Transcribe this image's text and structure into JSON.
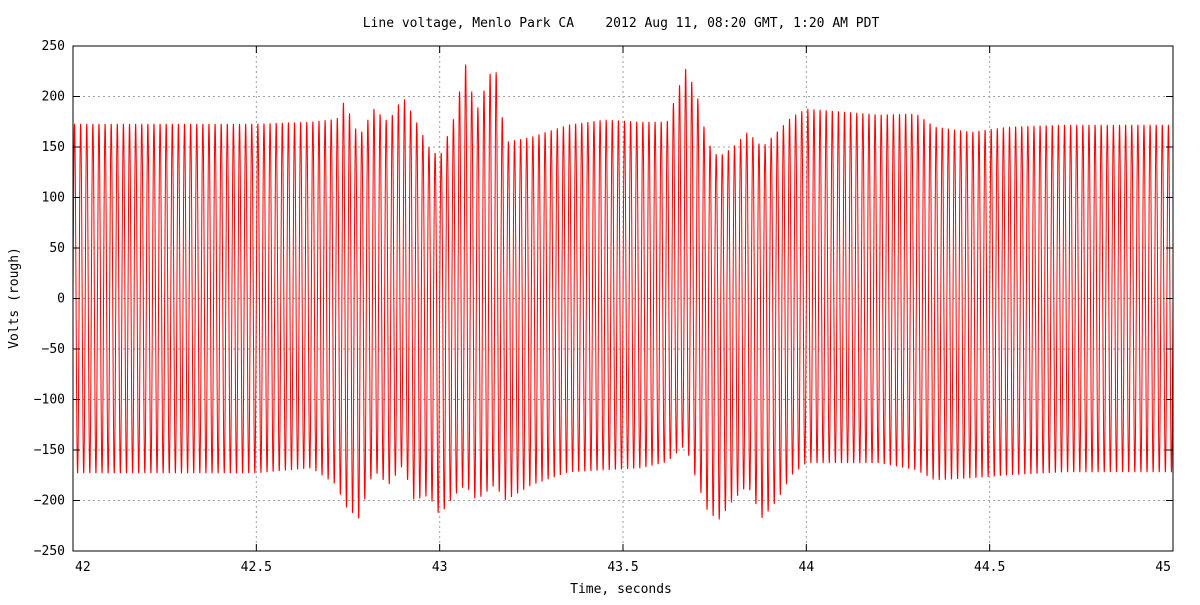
{
  "chart_data": {
    "type": "line",
    "title": "Line voltage, Menlo Park CA    2012 Aug 11, 08:20 GMT, 1:20 AM PDT",
    "xlabel": "Time, seconds",
    "ylabel": "Volts (rough)",
    "xlim": [
      42,
      45
    ],
    "ylim": [
      -250,
      250
    ],
    "x_ticks": [
      42,
      42.5,
      43,
      43.5,
      44,
      44.5,
      45
    ],
    "x_tick_labels": [
      "42",
      "42.5",
      "43",
      "43.5",
      "44",
      "44.5",
      "45"
    ],
    "y_ticks": [
      250,
      200,
      150,
      100,
      50,
      0,
      -50,
      -100,
      -150,
      -200,
      -250
    ],
    "y_tick_labels": [
      "250",
      "200",
      "150",
      "100",
      "50",
      "0",
      "−50",
      "−100",
      "−150",
      "−200",
      "−250"
    ],
    "grid": true,
    "legend": "none",
    "series": [
      {
        "color": "#ff0000",
        "waveform": "sine",
        "frequency_hz": 60,
        "envelope": [
          {
            "t": 42.0,
            "pos": 173,
            "neg": -173
          },
          {
            "t": 42.5,
            "pos": 173,
            "neg": -173
          },
          {
            "t": 42.65,
            "pos": 175,
            "neg": -168
          },
          {
            "t": 42.72,
            "pos": 178,
            "neg": -185
          },
          {
            "t": 42.74,
            "pos": 196,
            "neg": -205
          },
          {
            "t": 42.78,
            "pos": 160,
            "neg": -218
          },
          {
            "t": 42.82,
            "pos": 188,
            "neg": -170
          },
          {
            "t": 42.86,
            "pos": 175,
            "neg": -185
          },
          {
            "t": 42.9,
            "pos": 200,
            "neg": -165
          },
          {
            "t": 42.93,
            "pos": 180,
            "neg": -200
          },
          {
            "t": 42.97,
            "pos": 150,
            "neg": -195
          },
          {
            "t": 43.0,
            "pos": 140,
            "neg": -215
          },
          {
            "t": 43.04,
            "pos": 180,
            "neg": -195
          },
          {
            "t": 43.07,
            "pos": 233,
            "neg": -185
          },
          {
            "t": 43.1,
            "pos": 185,
            "neg": -200
          },
          {
            "t": 43.15,
            "pos": 235,
            "neg": -185
          },
          {
            "t": 43.18,
            "pos": 155,
            "neg": -200
          },
          {
            "t": 43.25,
            "pos": 160,
            "neg": -185
          },
          {
            "t": 43.35,
            "pos": 172,
            "neg": -172
          },
          {
            "t": 43.45,
            "pos": 177,
            "neg": -170
          },
          {
            "t": 43.55,
            "pos": 175,
            "neg": -168
          },
          {
            "t": 43.62,
            "pos": 175,
            "neg": -162
          },
          {
            "t": 43.67,
            "pos": 228,
            "neg": -145
          },
          {
            "t": 43.7,
            "pos": 205,
            "neg": -180
          },
          {
            "t": 43.73,
            "pos": 155,
            "neg": -210
          },
          {
            "t": 43.76,
            "pos": 140,
            "neg": -220
          },
          {
            "t": 43.8,
            "pos": 150,
            "neg": -200
          },
          {
            "t": 43.84,
            "pos": 165,
            "neg": -185
          },
          {
            "t": 43.88,
            "pos": 150,
            "neg": -218
          },
          {
            "t": 43.92,
            "pos": 165,
            "neg": -200
          },
          {
            "t": 43.96,
            "pos": 180,
            "neg": -175
          },
          {
            "t": 44.0,
            "pos": 188,
            "neg": -163
          },
          {
            "t": 44.1,
            "pos": 185,
            "neg": -163
          },
          {
            "t": 44.2,
            "pos": 182,
            "neg": -163
          },
          {
            "t": 44.3,
            "pos": 183,
            "neg": -170
          },
          {
            "t": 44.35,
            "pos": 170,
            "neg": -180
          },
          {
            "t": 44.45,
            "pos": 165,
            "neg": -178
          },
          {
            "t": 44.55,
            "pos": 170,
            "neg": -175
          },
          {
            "t": 44.7,
            "pos": 172,
            "neg": -172
          },
          {
            "t": 45.0,
            "pos": 172,
            "neg": -172
          }
        ]
      }
    ]
  }
}
